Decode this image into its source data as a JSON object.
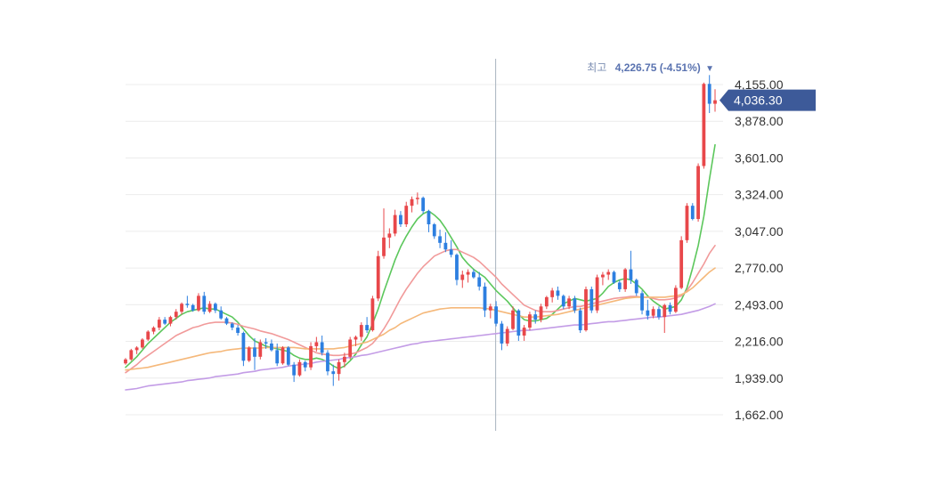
{
  "chart_data": {
    "type": "candlestick",
    "y_axis": {
      "ticks": [
        "4,155.00",
        "3,878.00",
        "3,601.00",
        "3,324.00",
        "3,047.00",
        "2,770.00",
        "2,493.00",
        "2,216.00",
        "1,939.00",
        "1,662.00"
      ],
      "tick_values": [
        4155,
        3878,
        3601,
        3324,
        3047,
        2770,
        2493,
        2216,
        1939,
        1662
      ],
      "range": [
        1570,
        4300
      ],
      "grid": true,
      "position": "right"
    },
    "high_marker": {
      "label": "최고",
      "value_text": "4,226.75 (-4.51%)",
      "arrow": "▼",
      "value": 4226.75
    },
    "last_price": {
      "value_text": "4,036.30",
      "value": 4036.3
    },
    "crosshair_index": 66,
    "colors": {
      "up": "#e8474a",
      "down": "#2d7fe0",
      "ma_green": "#5cc75c",
      "ma_red": "#f19a9a",
      "ma_orange": "#f5b87a",
      "ma_purple": "#c39ce6",
      "grid": "#ececec",
      "crosshair": "#a9b4bf",
      "tag": "#3d5a99",
      "high_label": "#7d8fb3",
      "high_value": "#5a73b0"
    },
    "candles": [
      [
        2050,
        2090,
        2040,
        2080
      ],
      [
        2080,
        2160,
        2070,
        2150
      ],
      [
        2150,
        2180,
        2120,
        2170
      ],
      [
        2170,
        2240,
        2160,
        2230
      ],
      [
        2230,
        2300,
        2220,
        2290
      ],
      [
        2290,
        2330,
        2270,
        2320
      ],
      [
        2320,
        2400,
        2300,
        2380
      ],
      [
        2380,
        2400,
        2340,
        2350
      ],
      [
        2350,
        2410,
        2330,
        2400
      ],
      [
        2400,
        2460,
        2380,
        2440
      ],
      [
        2440,
        2510,
        2420,
        2500
      ],
      [
        2500,
        2560,
        2470,
        2490
      ],
      [
        2490,
        2500,
        2440,
        2450
      ],
      [
        2450,
        2580,
        2440,
        2560
      ],
      [
        2560,
        2590,
        2420,
        2440
      ],
      [
        2440,
        2520,
        2430,
        2500
      ],
      [
        2500,
        2510,
        2430,
        2450
      ],
      [
        2450,
        2480,
        2380,
        2390
      ],
      [
        2390,
        2400,
        2340,
        2350
      ],
      [
        2350,
        2360,
        2300,
        2320
      ],
      [
        2320,
        2340,
        2260,
        2280
      ],
      [
        2280,
        2290,
        2030,
        2070
      ],
      [
        2070,
        2180,
        2060,
        2170
      ],
      [
        2170,
        2240,
        2000,
        2100
      ],
      [
        2100,
        2230,
        2080,
        2210
      ],
      [
        2210,
        2240,
        2160,
        2200
      ],
      [
        2200,
        2230,
        2140,
        2150
      ],
      [
        2150,
        2200,
        2030,
        2050
      ],
      [
        2050,
        2180,
        2040,
        2170
      ],
      [
        2170,
        2180,
        2030,
        2040
      ],
      [
        2040,
        2060,
        1910,
        1960
      ],
      [
        1960,
        2080,
        1950,
        2060
      ],
      [
        2060,
        2070,
        1990,
        2020
      ],
      [
        2020,
        2210,
        2000,
        2180
      ],
      [
        2180,
        2250,
        2140,
        2210
      ],
      [
        2210,
        2260,
        2110,
        2130
      ],
      [
        2130,
        2150,
        1960,
        1990
      ],
      [
        1990,
        2040,
        1880,
        1970
      ],
      [
        1970,
        2080,
        1920,
        2060
      ],
      [
        2060,
        2130,
        2020,
        2100
      ],
      [
        2100,
        2250,
        2080,
        2230
      ],
      [
        2230,
        2260,
        2180,
        2250
      ],
      [
        2250,
        2360,
        2220,
        2340
      ],
      [
        2340,
        2400,
        2280,
        2300
      ],
      [
        2300,
        2560,
        2290,
        2540
      ],
      [
        2540,
        2900,
        2520,
        2860
      ],
      [
        2860,
        3220,
        2840,
        3000
      ],
      [
        3000,
        3070,
        2920,
        3030
      ],
      [
        3030,
        3210,
        3010,
        3170
      ],
      [
        3170,
        3200,
        3080,
        3100
      ],
      [
        3100,
        3270,
        3080,
        3240
      ],
      [
        3240,
        3310,
        3190,
        3290
      ],
      [
        3290,
        3340,
        3250,
        3300
      ],
      [
        3300,
        3310,
        3180,
        3200
      ],
      [
        3200,
        3210,
        3040,
        3100
      ],
      [
        3100,
        3110,
        2990,
        3010
      ],
      [
        3010,
        3060,
        2920,
        2960
      ],
      [
        2960,
        3040,
        2890,
        2910
      ],
      [
        2910,
        2980,
        2850,
        2870
      ],
      [
        2870,
        2880,
        2640,
        2680
      ],
      [
        2680,
        2750,
        2620,
        2720
      ],
      [
        2720,
        2760,
        2660,
        2740
      ],
      [
        2740,
        2760,
        2690,
        2700
      ],
      [
        2700,
        2740,
        2600,
        2630
      ],
      [
        2630,
        2660,
        2400,
        2450
      ],
      [
        2450,
        2500,
        2390,
        2480
      ],
      [
        2480,
        2520,
        2330,
        2350
      ],
      [
        2350,
        2370,
        2150,
        2200
      ],
      [
        2200,
        2330,
        2180,
        2310
      ],
      [
        2310,
        2480,
        2300,
        2450
      ],
      [
        2450,
        2460,
        2220,
        2260
      ],
      [
        2260,
        2340,
        2220,
        2320
      ],
      [
        2320,
        2440,
        2300,
        2420
      ],
      [
        2420,
        2450,
        2350,
        2380
      ],
      [
        2380,
        2500,
        2360,
        2480
      ],
      [
        2480,
        2560,
        2460,
        2550
      ],
      [
        2550,
        2620,
        2510,
        2600
      ],
      [
        2600,
        2630,
        2530,
        2560
      ],
      [
        2560,
        2570,
        2460,
        2480
      ],
      [
        2480,
        2560,
        2460,
        2540
      ],
      [
        2540,
        2560,
        2430,
        2450
      ],
      [
        2450,
        2470,
        2280,
        2300
      ],
      [
        2300,
        2630,
        2290,
        2610
      ],
      [
        2610,
        2630,
        2430,
        2450
      ],
      [
        2450,
        2720,
        2430,
        2700
      ],
      [
        2700,
        2740,
        2640,
        2720
      ],
      [
        2720,
        2760,
        2680,
        2740
      ],
      [
        2740,
        2750,
        2650,
        2660
      ],
      [
        2660,
        2680,
        2590,
        2610
      ],
      [
        2610,
        2770,
        2590,
        2760
      ],
      [
        2760,
        2900,
        2650,
        2680
      ],
      [
        2680,
        2690,
        2560,
        2580
      ],
      [
        2580,
        2600,
        2420,
        2450
      ],
      [
        2450,
        2530,
        2380,
        2410
      ],
      [
        2410,
        2480,
        2390,
        2460
      ],
      [
        2460,
        2480,
        2380,
        2400
      ],
      [
        2400,
        2500,
        2280,
        2490
      ],
      [
        2490,
        2510,
        2420,
        2440
      ],
      [
        2440,
        2640,
        2430,
        2620
      ],
      [
        2620,
        3010,
        2610,
        2980
      ],
      [
        2980,
        3260,
        2960,
        3240
      ],
      [
        3240,
        3260,
        3130,
        3140
      ],
      [
        3140,
        3560,
        3120,
        3540
      ],
      [
        3540,
        4170,
        3520,
        4160
      ],
      [
        4160,
        4226.75,
        3940,
        4010
      ],
      [
        4010,
        4120,
        3950,
        4036.3
      ]
    ],
    "moving_averages": [
      {
        "color_key": "ma_green",
        "values": [
          2020,
          2060,
          2100,
          2150,
          2200,
          2240,
          2280,
          2320,
          2360,
          2390,
          2420,
          2440,
          2450,
          2460,
          2470,
          2460,
          2460,
          2440,
          2420,
          2400,
          2360,
          2310,
          2260,
          2220,
          2200,
          2180,
          2170,
          2160,
          2150,
          2140,
          2110,
          2090,
          2080,
          2080,
          2090,
          2080,
          2060,
          2030,
          2010,
          2030,
          2070,
          2120,
          2190,
          2250,
          2350,
          2460,
          2590,
          2710,
          2830,
          2930,
          3010,
          3080,
          3140,
          3180,
          3200,
          3170,
          3130,
          3070,
          3000,
          2930,
          2850,
          2800,
          2760,
          2730,
          2700,
          2650,
          2600,
          2560,
          2520,
          2470,
          2420,
          2380,
          2370,
          2370,
          2380,
          2390,
          2420,
          2460,
          2500,
          2520,
          2540,
          2530,
          2520,
          2530,
          2540,
          2580,
          2630,
          2660,
          2680,
          2690,
          2680,
          2650,
          2610,
          2560,
          2520,
          2490,
          2460,
          2470,
          2480,
          2530,
          2620,
          2770,
          2940,
          3160,
          3440,
          3700
        ]
      },
      {
        "color_key": "ma_red",
        "values": [
          1980,
          2010,
          2040,
          2080,
          2110,
          2140,
          2170,
          2200,
          2230,
          2260,
          2280,
          2300,
          2320,
          2330,
          2345,
          2355,
          2360,
          2360,
          2360,
          2355,
          2345,
          2330,
          2320,
          2310,
          2295,
          2285,
          2275,
          2260,
          2245,
          2230,
          2210,
          2190,
          2170,
          2150,
          2130,
          2120,
          2115,
          2110,
          2110,
          2115,
          2120,
          2130,
          2150,
          2170,
          2200,
          2250,
          2310,
          2380,
          2460,
          2540,
          2610,
          2670,
          2730,
          2780,
          2820,
          2860,
          2880,
          2900,
          2910,
          2910,
          2890,
          2870,
          2850,
          2820,
          2780,
          2740,
          2700,
          2650,
          2610,
          2570,
          2530,
          2490,
          2470,
          2450,
          2440,
          2440,
          2440,
          2450,
          2460,
          2470,
          2480,
          2480,
          2490,
          2500,
          2510,
          2520,
          2530,
          2540,
          2545,
          2550,
          2555,
          2555,
          2550,
          2550,
          2540,
          2530,
          2530,
          2535,
          2545,
          2560,
          2600,
          2660,
          2730,
          2800,
          2880,
          2940
        ]
      },
      {
        "color_key": "ma_orange",
        "values": [
          2000,
          2005,
          2010,
          2015,
          2020,
          2030,
          2040,
          2050,
          2060,
          2070,
          2080,
          2090,
          2100,
          2110,
          2120,
          2130,
          2135,
          2140,
          2150,
          2155,
          2160,
          2165,
          2165,
          2165,
          2165,
          2170,
          2170,
          2170,
          2170,
          2170,
          2170,
          2165,
          2160,
          2160,
          2160,
          2160,
          2160,
          2160,
          2165,
          2170,
          2180,
          2190,
          2200,
          2210,
          2230,
          2250,
          2270,
          2300,
          2320,
          2350,
          2370,
          2390,
          2410,
          2430,
          2440,
          2450,
          2460,
          2465,
          2470,
          2470,
          2470,
          2470,
          2470,
          2470,
          2465,
          2460,
          2450,
          2440,
          2430,
          2420,
          2410,
          2400,
          2400,
          2400,
          2405,
          2410,
          2415,
          2420,
          2430,
          2440,
          2450,
          2460,
          2470,
          2480,
          2490,
          2500,
          2510,
          2520,
          2530,
          2540,
          2545,
          2550,
          2550,
          2550,
          2550,
          2550,
          2550,
          2555,
          2560,
          2570,
          2590,
          2620,
          2660,
          2700,
          2740,
          2770
        ]
      },
      {
        "color_key": "ma_purple",
        "values": [
          1850,
          1855,
          1860,
          1870,
          1880,
          1885,
          1890,
          1895,
          1900,
          1905,
          1910,
          1920,
          1925,
          1930,
          1935,
          1940,
          1950,
          1955,
          1960,
          1965,
          1970,
          1980,
          1985,
          1990,
          2000,
          2005,
          2010,
          2015,
          2020,
          2030,
          2035,
          2040,
          2045,
          2050,
          2060,
          2065,
          2070,
          2075,
          2080,
          2090,
          2095,
          2100,
          2110,
          2115,
          2125,
          2135,
          2145,
          2155,
          2165,
          2175,
          2185,
          2195,
          2200,
          2210,
          2215,
          2220,
          2225,
          2230,
          2235,
          2240,
          2245,
          2250,
          2255,
          2260,
          2265,
          2270,
          2275,
          2280,
          2285,
          2290,
          2295,
          2300,
          2300,
          2305,
          2310,
          2315,
          2320,
          2325,
          2330,
          2335,
          2340,
          2340,
          2345,
          2350,
          2355,
          2360,
          2365,
          2365,
          2370,
          2375,
          2380,
          2385,
          2390,
          2395,
          2400,
          2400,
          2405,
          2410,
          2415,
          2420,
          2430,
          2440,
          2450,
          2465,
          2480,
          2500
        ]
      }
    ]
  }
}
